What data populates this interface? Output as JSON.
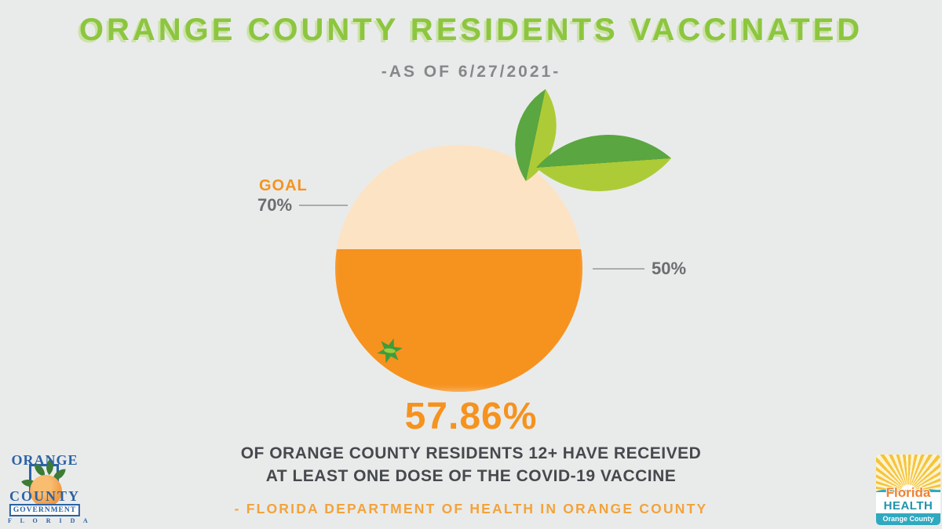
{
  "header": {
    "title": "ORANGE COUNTY RESIDENTS VACCINATED",
    "subtitle": "-AS OF 6/27/2021-"
  },
  "chart_data": {
    "type": "pie",
    "subtype": "fill-gauge",
    "title": "ORANGE COUNTY RESIDENTS VACCINATED",
    "as_of_date": "6/27/2021",
    "series": [
      {
        "name": "Orange County residents 12+ with at least one COVID-19 vaccine dose",
        "value_pct": 57.86
      }
    ],
    "value_pct": 57.86,
    "value_label": "57.86%",
    "goal_pct": 70,
    "goal_label": "GOAL",
    "goal_tick_label": "70%",
    "reference_pct": 50,
    "reference_tick_label": "50%",
    "description_line1": "OF ORANGE COUNTY RESIDENTS 12+ HAVE RECEIVED",
    "description_line2": "AT LEAST ONE DOSE OF THE COVID-19 VACCINE",
    "source": "- FLORIDA DEPARTMENT OF HEALTH IN ORANGE COUNTY",
    "colors": {
      "background": "#e9ebea",
      "title_green": "#8cc63f",
      "title_shadow": "#cde2a9",
      "subtitle_gray": "#85888a",
      "orange": "#f6921e",
      "peach": "#fce3c4",
      "leaf_dark_green": "#5aa640",
      "leaf_light_green": "#adcb37",
      "tick_gray": "#6b6e71",
      "text_dark": "#46494d",
      "source_orange": "#f2a33c"
    }
  },
  "logos": {
    "county": {
      "word1": "ORANGE",
      "word2": "COUNTY",
      "word3": "GOVERNMENT",
      "word4": "F L O R I D A"
    },
    "health": {
      "name": "Florida",
      "dept": "HEALTH",
      "region": "Orange County"
    }
  }
}
